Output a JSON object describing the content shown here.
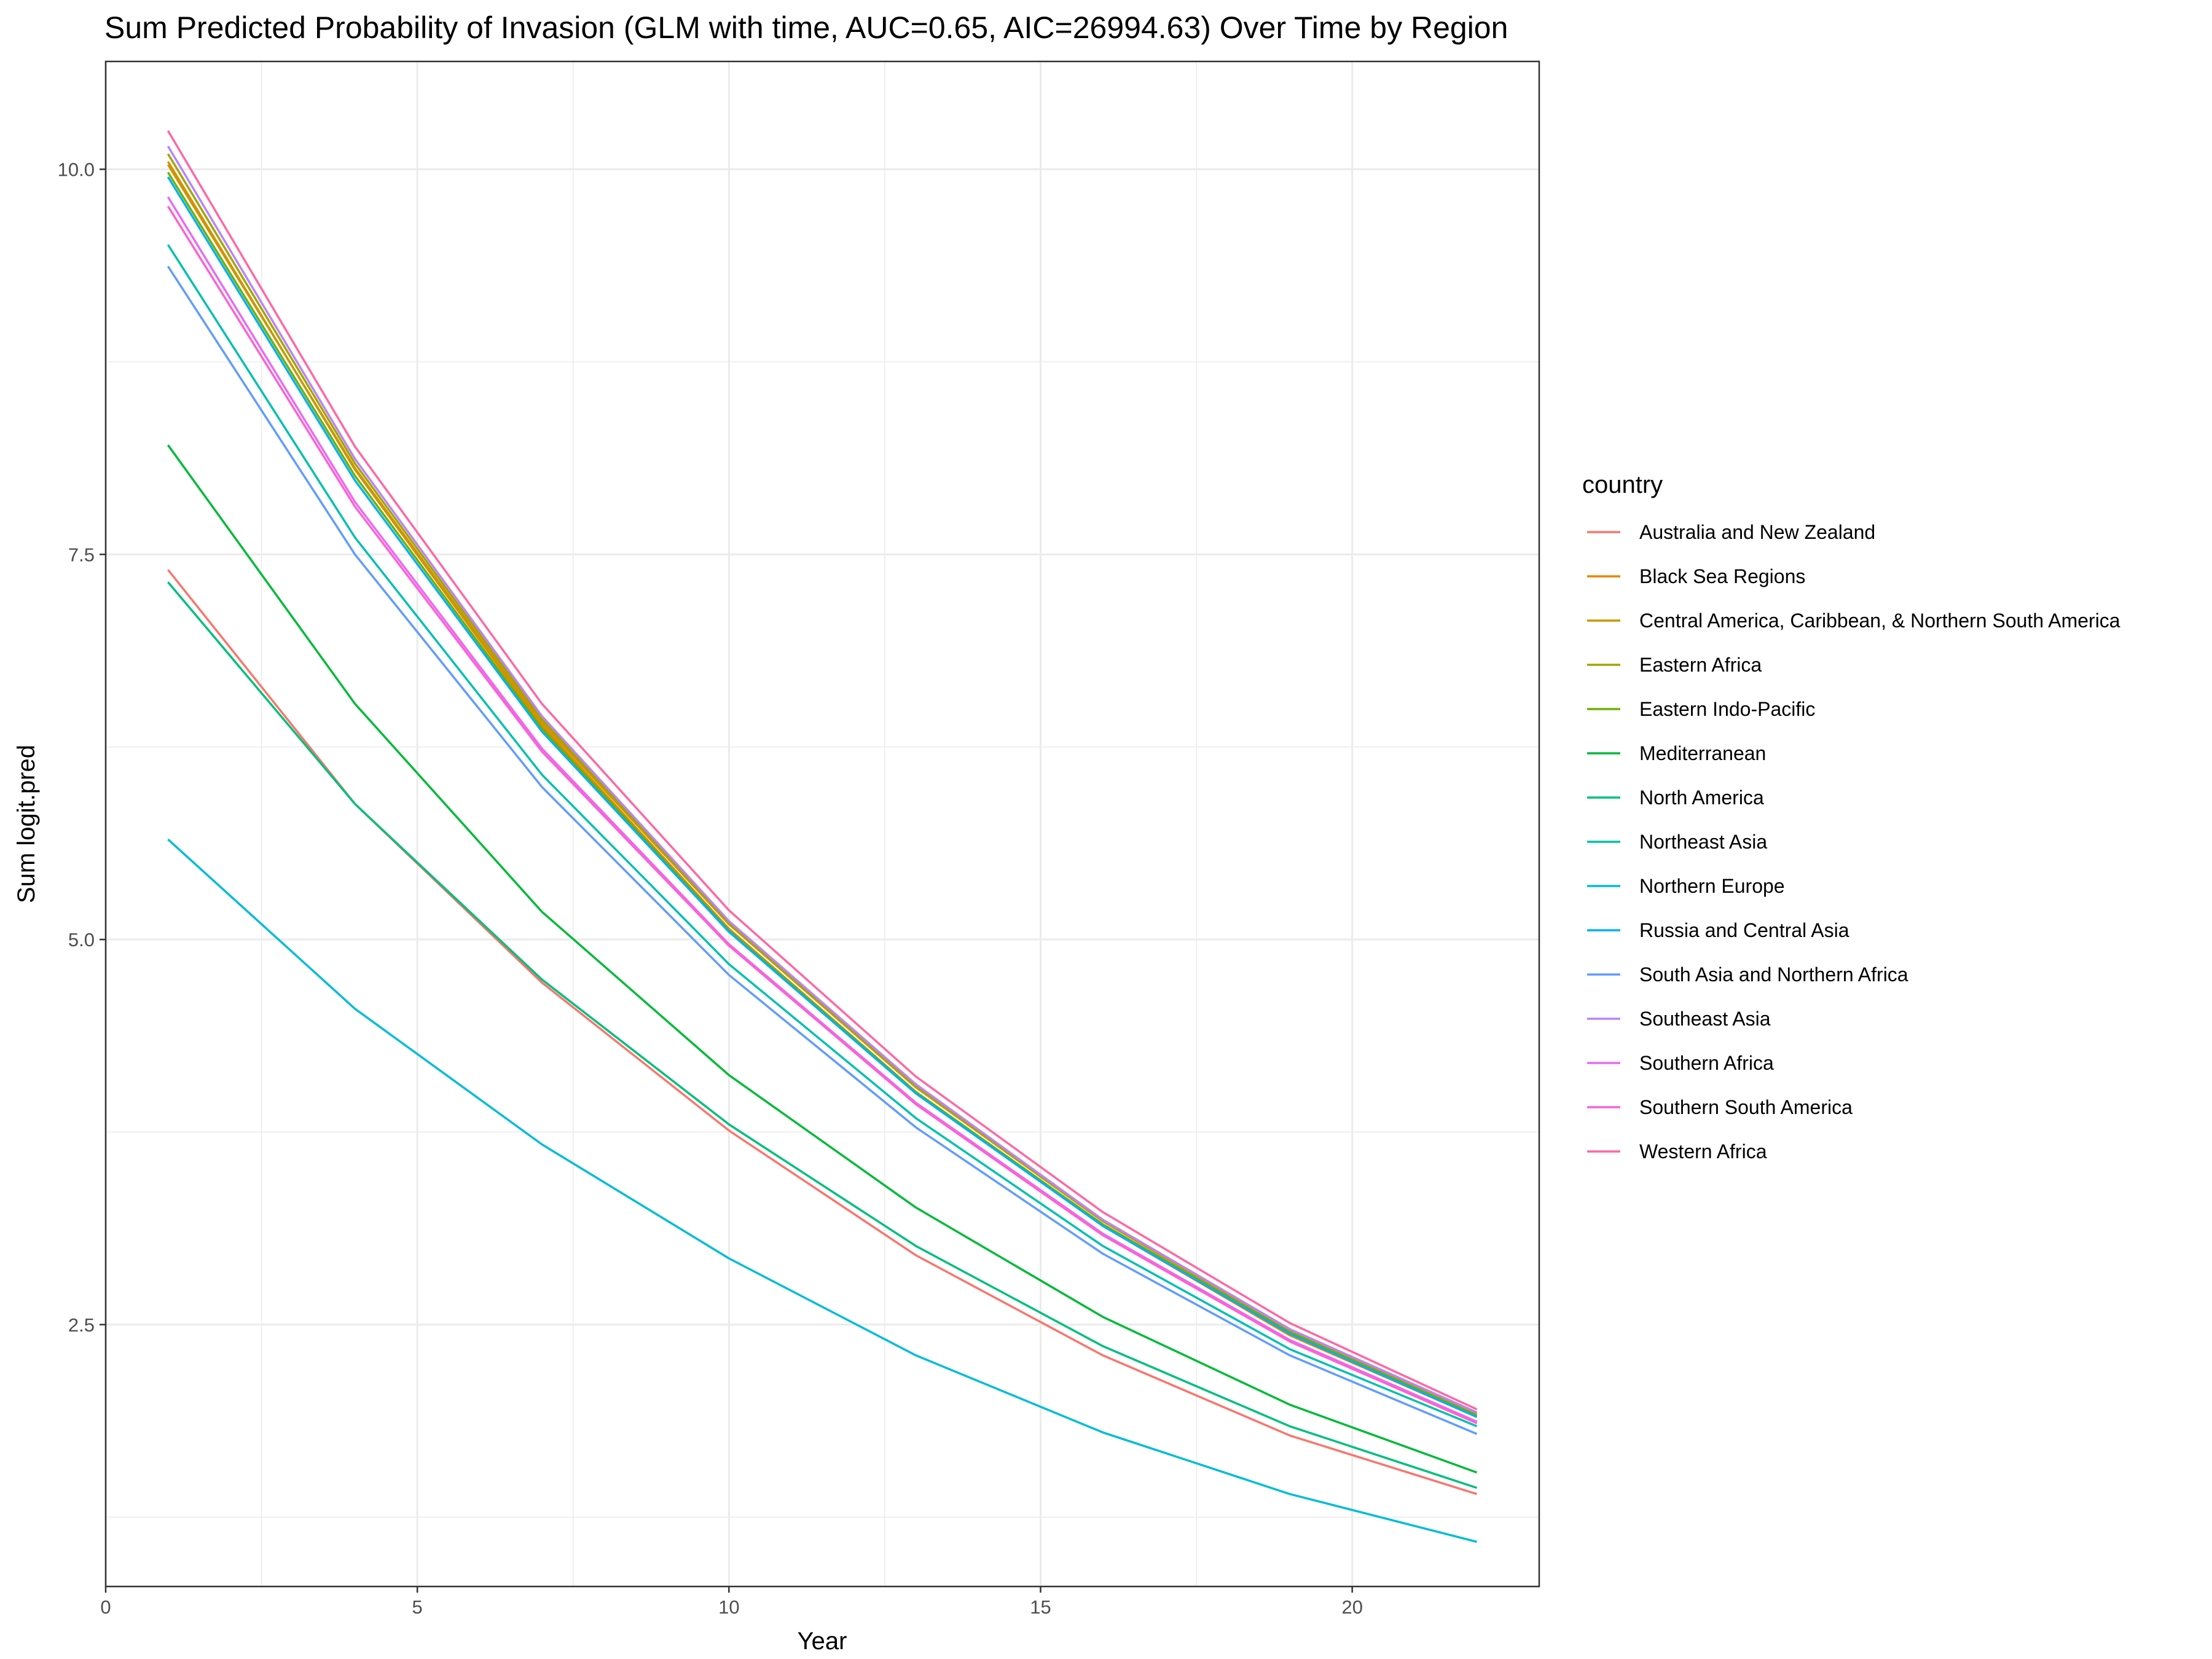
{
  "chart_data": {
    "type": "line",
    "title": "Sum Predicted Probability of Invasion (GLM with time, AUC=0.65, AIC=26994.63) Over Time by Region",
    "xlabel": "Year",
    "ylabel": "Sum logit.pred",
    "xlim": [
      0,
      23
    ],
    "ylim": [
      0.8,
      10.7
    ],
    "x_ticks": [
      0,
      5,
      10,
      15,
      20
    ],
    "x_tick_labels": [
      "0",
      "5",
      "10",
      "15",
      "20"
    ],
    "y_ticks": [
      2.5,
      5.0,
      7.5,
      10.0
    ],
    "y_tick_labels": [
      "2.5",
      "5.0",
      "7.5",
      "10.0"
    ],
    "grid": true,
    "legend_title": "country",
    "legend_position": "right",
    "x": [
      1,
      4,
      7,
      10,
      13,
      16,
      19,
      22
    ],
    "series": [
      {
        "name": "Australia and New Zealand",
        "color": "#F8766D",
        "values": [
          7.4,
          5.88,
          4.72,
          3.76,
          2.95,
          2.3,
          1.78,
          1.4
        ]
      },
      {
        "name": "Black Sea Regions",
        "color": "#E58700",
        "values": [
          10.05,
          8.05,
          6.39,
          5.07,
          4.01,
          3.14,
          2.43,
          1.9
        ]
      },
      {
        "name": "Central America, Caribbean, & Northern South America",
        "color": "#C99800",
        "values": [
          10.03,
          8.06,
          6.41,
          5.1,
          4.04,
          3.17,
          2.46,
          1.92
        ]
      },
      {
        "name": "Eastern Africa",
        "color": "#A3A500",
        "values": [
          10.1,
          8.09,
          6.43,
          5.11,
          4.05,
          3.18,
          2.47,
          1.93
        ]
      },
      {
        "name": "Eastern Indo-Pacific",
        "color": "#6BB100",
        "values": [
          9.98,
          8.01,
          6.37,
          5.06,
          4.01,
          3.15,
          2.45,
          1.91
        ]
      },
      {
        "name": "Mediterranean",
        "color": "#00BA38",
        "values": [
          8.21,
          6.53,
          5.18,
          4.12,
          3.26,
          2.55,
          1.98,
          1.54
        ]
      },
      {
        "name": "North America",
        "color": "#00BF7D",
        "values": [
          7.32,
          5.88,
          4.74,
          3.8,
          3.01,
          2.36,
          1.84,
          1.44
        ]
      },
      {
        "name": "Northeast Asia",
        "color": "#00C0AF",
        "values": [
          9.51,
          7.61,
          6.07,
          4.84,
          3.84,
          3.01,
          2.34,
          1.84
        ]
      },
      {
        "name": "Northern Europe",
        "color": "#00BCD8",
        "values": [
          5.65,
          4.55,
          3.67,
          2.93,
          2.3,
          1.8,
          1.4,
          1.09
        ]
      },
      {
        "name": "Russia and Central Asia",
        "color": "#00B0F6",
        "values": [
          9.95,
          7.98,
          6.35,
          5.05,
          4.0,
          3.14,
          2.44,
          1.9
        ]
      },
      {
        "name": "South Asia and Northern Africa",
        "color": "#619CFF",
        "values": [
          9.37,
          7.5,
          5.99,
          4.77,
          3.78,
          2.96,
          2.3,
          1.79
        ]
      },
      {
        "name": "Southeast Asia",
        "color": "#B983FF",
        "values": [
          10.15,
          8.12,
          6.45,
          5.12,
          4.06,
          3.18,
          2.47,
          1.93
        ]
      },
      {
        "name": "Southern Africa",
        "color": "#E76BF3",
        "values": [
          9.82,
          7.84,
          6.24,
          4.97,
          3.94,
          3.09,
          2.4,
          1.87
        ]
      },
      {
        "name": "Southern South America",
        "color": "#FD61D1",
        "values": [
          9.76,
          7.81,
          6.22,
          4.96,
          3.93,
          3.08,
          2.39,
          1.86
        ]
      },
      {
        "name": "Western Africa",
        "color": "#FF67A4",
        "values": [
          10.25,
          8.2,
          6.53,
          5.19,
          4.11,
          3.23,
          2.51,
          1.95
        ]
      }
    ]
  }
}
